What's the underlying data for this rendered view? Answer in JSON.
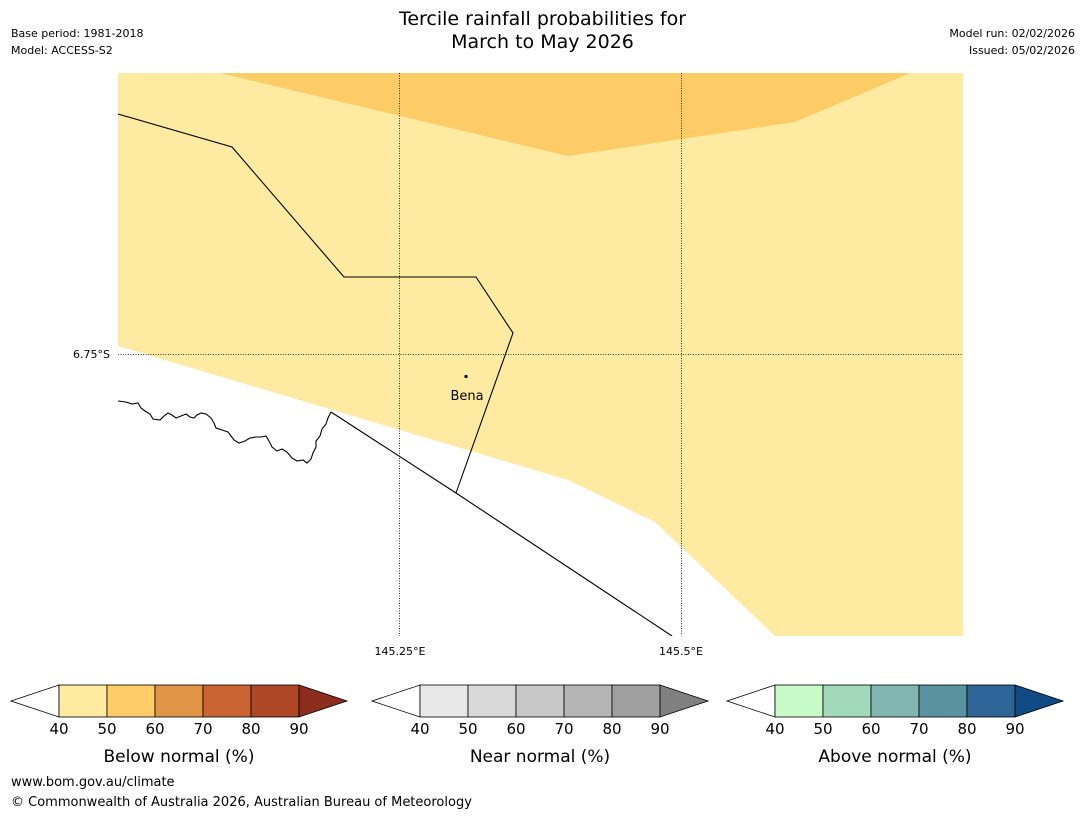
{
  "header": {
    "title_line1": "Tercile rainfall probabilities for",
    "title_line2": "March to May 2026",
    "base_period": "Base period: 1981-2018",
    "model": "Model: ACCESS-S2",
    "model_run": "Model run: 02/02/2026",
    "issued": "Issued: 05/02/2026"
  },
  "map": {
    "lat_label": "6.75°S",
    "lon_labels": [
      "145.25°E",
      "145.5°E"
    ],
    "place": "Bena",
    "colors": {
      "below_40_50": "#feeaa0",
      "below_50_60": "#fecc66",
      "border": "#000000"
    }
  },
  "legends": [
    {
      "title": "Below normal (%)",
      "ticks": [
        "40",
        "50",
        "60",
        "70",
        "80",
        "90"
      ],
      "colors": [
        "#ffffff",
        "#feeaa0",
        "#fecc66",
        "#e09445",
        "#cb6433",
        "#ad4726",
        "#8c2c1c"
      ]
    },
    {
      "title": "Near normal (%)",
      "ticks": [
        "40",
        "50",
        "60",
        "70",
        "80",
        "90"
      ],
      "colors": [
        "#ffffff",
        "#e8e8e8",
        "#d9d9d9",
        "#c8c8c8",
        "#b4b4b4",
        "#a0a0a0",
        "#808080"
      ]
    },
    {
      "title": "Above normal (%)",
      "ticks": [
        "40",
        "50",
        "60",
        "70",
        "80",
        "90"
      ],
      "colors": [
        "#ffffff",
        "#c8fac8",
        "#a3d9bb",
        "#80b6af",
        "#5a93a0",
        "#2d6596",
        "#0f4a82"
      ]
    }
  ],
  "footer": {
    "url": "www.bom.gov.au/climate",
    "copyright": "© Commonwealth of Australia 2026, Australian Bureau of Meteorology"
  }
}
